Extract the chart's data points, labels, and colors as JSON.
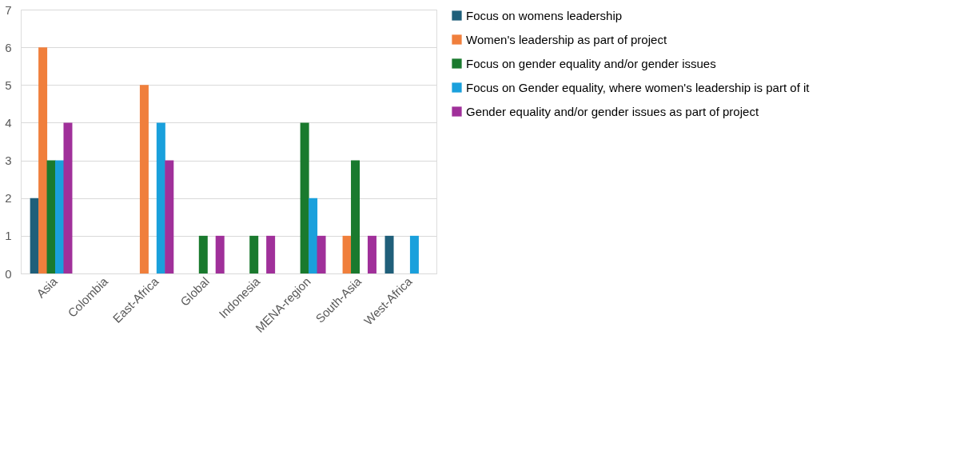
{
  "chart_data": {
    "type": "bar",
    "categories": [
      "Asia",
      "Colombia",
      "East-Africa",
      "Global",
      "Indonesia",
      "MENA-region",
      "South-Asia",
      "West-Africa"
    ],
    "series": [
      {
        "name": "Focus on womens leadership",
        "color": "#1f5f7a",
        "values": [
          2,
          0,
          0,
          0,
          0,
          0,
          0,
          1
        ]
      },
      {
        "name": "Women's leadership as part of project",
        "color": "#f07f3c",
        "values": [
          6,
          0,
          5,
          0,
          0,
          0,
          1,
          0
        ]
      },
      {
        "name": "Focus on gender equality and/or gender issues",
        "color": "#1a7a2e",
        "values": [
          3,
          0,
          0,
          1,
          1,
          4,
          3,
          0
        ]
      },
      {
        "name": "Focus on Gender equality, where women's leadership is part of it",
        "color": "#1aa0dc",
        "values": [
          3,
          0,
          4,
          0,
          0,
          2,
          0,
          1
        ]
      },
      {
        "name": "Gender equality and/or gender issues as part of project",
        "color": "#a0309a",
        "values": [
          4,
          0,
          3,
          1,
          1,
          1,
          1,
          0
        ]
      }
    ],
    "ylim": [
      0,
      7
    ],
    "yticks": [
      0,
      1,
      2,
      3,
      4,
      5,
      6,
      7
    ],
    "grid": "y",
    "legend": "right"
  }
}
